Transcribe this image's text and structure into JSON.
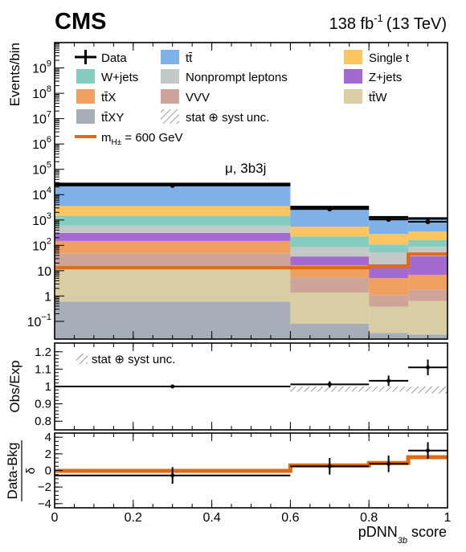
{
  "header": {
    "experiment": "CMS",
    "lumi_main": "138 fb",
    "lumi_sup": "-1",
    "lumi_energy": "(13 TeV)"
  },
  "colors": {
    "ttbar": "#7db1e8",
    "single_t": "#fcc55f",
    "wjets": "#86cdc1",
    "nonprompt": "#c3c9c6",
    "zjets": "#a56ad0",
    "ttx": "#f0a05e",
    "vvv": "#cda497",
    "ttw": "#d9cda4",
    "ttxy": "#a8aeb8",
    "signal": "#e06a10",
    "data": "#000000"
  },
  "chart_data": [
    {
      "type": "bar",
      "stacked": true,
      "ylabel": "Events/bin",
      "yscale": "log",
      "ylim": [
        0.02,
        10000000000.0
      ],
      "xlim": [
        0,
        1
      ],
      "bin_edges": [
        0,
        0.6,
        0.8,
        0.9,
        1.0
      ],
      "yticks": [
        {
          "value": 1000000000.0,
          "base": "10",
          "exp": "9"
        },
        {
          "value": 100000000.0,
          "base": "10",
          "exp": "8"
        },
        {
          "value": 10000000.0,
          "base": "10",
          "exp": "7"
        },
        {
          "value": 1000000.0,
          "base": "10",
          "exp": "6"
        },
        {
          "value": 100000.0,
          "base": "10",
          "exp": "5"
        },
        {
          "value": 10000.0,
          "base": "10",
          "exp": "4"
        },
        {
          "value": 1000.0,
          "base": "10",
          "exp": "3"
        },
        {
          "value": 100,
          "base": "10",
          "exp": "2"
        },
        {
          "value": 10,
          "base": "10",
          "exp": ""
        },
        {
          "value": 1,
          "base": "1",
          "exp": ""
        },
        {
          "value": 0.1,
          "base": "10",
          "exp": "−1"
        }
      ],
      "annotation": "μ, 3b3j",
      "legend": {
        "placement": "top",
        "entries": [
          {
            "key": "data",
            "label": "Data",
            "kind": "data"
          },
          {
            "key": "ttbar",
            "label": "tt̄",
            "kind": "fill"
          },
          {
            "key": "single_t",
            "label": "Single t",
            "kind": "fill"
          },
          {
            "key": "wjets",
            "label": "W+jets",
            "kind": "fill"
          },
          {
            "key": "nonprompt",
            "label": "Nonprompt leptons",
            "kind": "fill"
          },
          {
            "key": "zjets",
            "label": "Z+jets",
            "kind": "fill"
          },
          {
            "key": "ttx",
            "label": "tt̄X",
            "kind": "fill"
          },
          {
            "key": "vvv",
            "label": "VVV",
            "kind": "fill"
          },
          {
            "key": "ttw",
            "label": "tt̄W",
            "kind": "fill"
          },
          {
            "key": "ttxy",
            "label": "tt̄XY",
            "kind": "fill"
          },
          {
            "key": "unc",
            "label": "stat ⊕ syst unc.",
            "kind": "hatch"
          },
          {
            "key": "signal",
            "label": "m",
            "sub": "H±",
            "suffix": " = 600 GeV",
            "kind": "line"
          }
        ]
      },
      "stack_order": [
        "ttxy",
        "ttw",
        "vvv",
        "ttx",
        "zjets",
        "nonprompt",
        "wjets",
        "single_t",
        "ttbar"
      ],
      "series": [
        {
          "name": "tt̄XY",
          "key": "ttxy",
          "values": [
            0.6,
            0.08,
            0.035,
            0.03
          ]
        },
        {
          "name": "tt̄W",
          "key": "ttw",
          "values": [
            13,
            1.3,
            0.35,
            0.6
          ]
        },
        {
          "name": "VVV",
          "key": "vvv",
          "values": [
            35,
            4,
            0.7,
            1.2
          ]
        },
        {
          "name": "tt̄X",
          "key": "ttx",
          "values": [
            100,
            11,
            4,
            5
          ]
        },
        {
          "name": "Z+jets",
          "key": "zjets",
          "values": [
            160,
            20,
            13,
            30
          ]
        },
        {
          "name": "Nonprompt leptons",
          "key": "nonprompt",
          "values": [
            300,
            50,
            35,
            50
          ]
        },
        {
          "name": "W+jets",
          "key": "wjets",
          "values": [
            850,
            140,
            55,
            75
          ]
        },
        {
          "name": "Single t",
          "key": "single_t",
          "values": [
            2100,
            320,
            170,
            190
          ]
        },
        {
          "name": "tt̄",
          "key": "ttbar",
          "values": [
            23000,
            2700,
            1000,
            800
          ]
        }
      ],
      "signal": {
        "key": "signal",
        "values": [
          13,
          13,
          15,
          45
        ]
      },
      "data": {
        "x": [
          0.3,
          0.7,
          0.85,
          0.95
        ],
        "y": [
          23000,
          2700,
          1050,
          850
        ]
      }
    },
    {
      "type": "scatter",
      "ylabel": "Obs/Exp",
      "ylim": [
        0.75,
        1.25
      ],
      "yticks": [
        0.8,
        0.9,
        1,
        1.1,
        1.2
      ],
      "ytick_labels": [
        "0.8",
        "0.9",
        "1",
        "1.1",
        "1.2"
      ],
      "legend_label": "stat ⊕ syst unc.",
      "data": {
        "x": [
          0.3,
          0.7,
          0.85,
          0.95
        ],
        "y": [
          1.0,
          1.012,
          1.033,
          1.11
        ],
        "yerr": [
          0.003,
          0.018,
          0.03,
          0.045
        ]
      },
      "unc_band": {
        "lower": [
          0.996,
          0.97,
          0.97,
          0.96
        ],
        "upper": [
          1.004,
          1.0,
          1.0,
          1.0
        ]
      }
    },
    {
      "type": "scatter",
      "ylabel_num": "Data-Bkg",
      "ylabel_den": "δ",
      "ylim": [
        -4.5,
        4.5
      ],
      "yticks": [
        -4,
        -2,
        0,
        2,
        4
      ],
      "ytick_labels": [
        "−4",
        "−2",
        "0",
        "2",
        "4"
      ],
      "data": {
        "x": [
          0.3,
          0.7,
          0.85,
          0.95
        ],
        "y": [
          -0.6,
          0.5,
          0.8,
          2.4
        ],
        "yerr": [
          1.0,
          1.0,
          1.0,
          1.0
        ]
      },
      "signal": [
        -0.05,
        0.6,
        0.9,
        1.6
      ]
    }
  ],
  "x_axis": {
    "ticks": [
      0,
      0.2,
      0.4,
      0.6,
      0.8,
      1
    ],
    "tick_labels": [
      "0",
      "0.2",
      "0.4",
      "0.6",
      "0.8",
      "1"
    ],
    "label": "pDNN",
    "label_sub": "3b",
    "label_suffix": " score"
  }
}
